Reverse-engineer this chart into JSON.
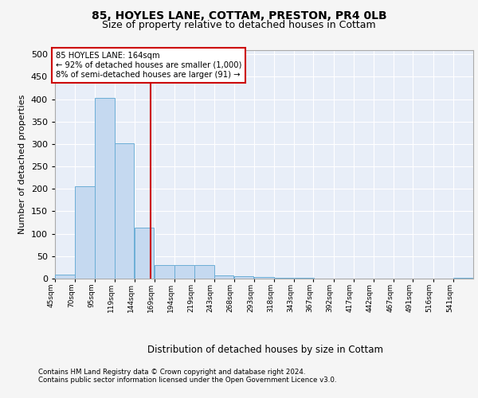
{
  "title1": "85, HOYLES LANE, COTTAM, PRESTON, PR4 0LB",
  "title2": "Size of property relative to detached houses in Cottam",
  "xlabel": "Distribution of detached houses by size in Cottam",
  "ylabel": "Number of detached properties",
  "bins": [
    45,
    70,
    95,
    119,
    144,
    169,
    194,
    219,
    243,
    268,
    293,
    318,
    343,
    367,
    392,
    417,
    442,
    467,
    491,
    516,
    541
  ],
  "counts": [
    8,
    205,
    403,
    302,
    113,
    31,
    30,
    30,
    7,
    5,
    3,
    1,
    2,
    0,
    0,
    0,
    0,
    0,
    0,
    0,
    2
  ],
  "bar_color": "#c5d9f0",
  "bar_edge_color": "#6baed6",
  "property_size": 164,
  "vline_color": "#cc0000",
  "annotation_text": "85 HOYLES LANE: 164sqm\n← 92% of detached houses are smaller (1,000)\n8% of semi-detached houses are larger (91) →",
  "annotation_box_color": "#ffffff",
  "annotation_edge_color": "#cc0000",
  "footer1": "Contains HM Land Registry data © Crown copyright and database right 2024.",
  "footer2": "Contains public sector information licensed under the Open Government Licence v3.0.",
  "ylim": [
    0,
    510
  ],
  "background_color": "#e8eef8",
  "grid_color": "#ffffff",
  "title1_fontsize": 10,
  "title2_fontsize": 9,
  "fig_bg": "#f5f5f5"
}
